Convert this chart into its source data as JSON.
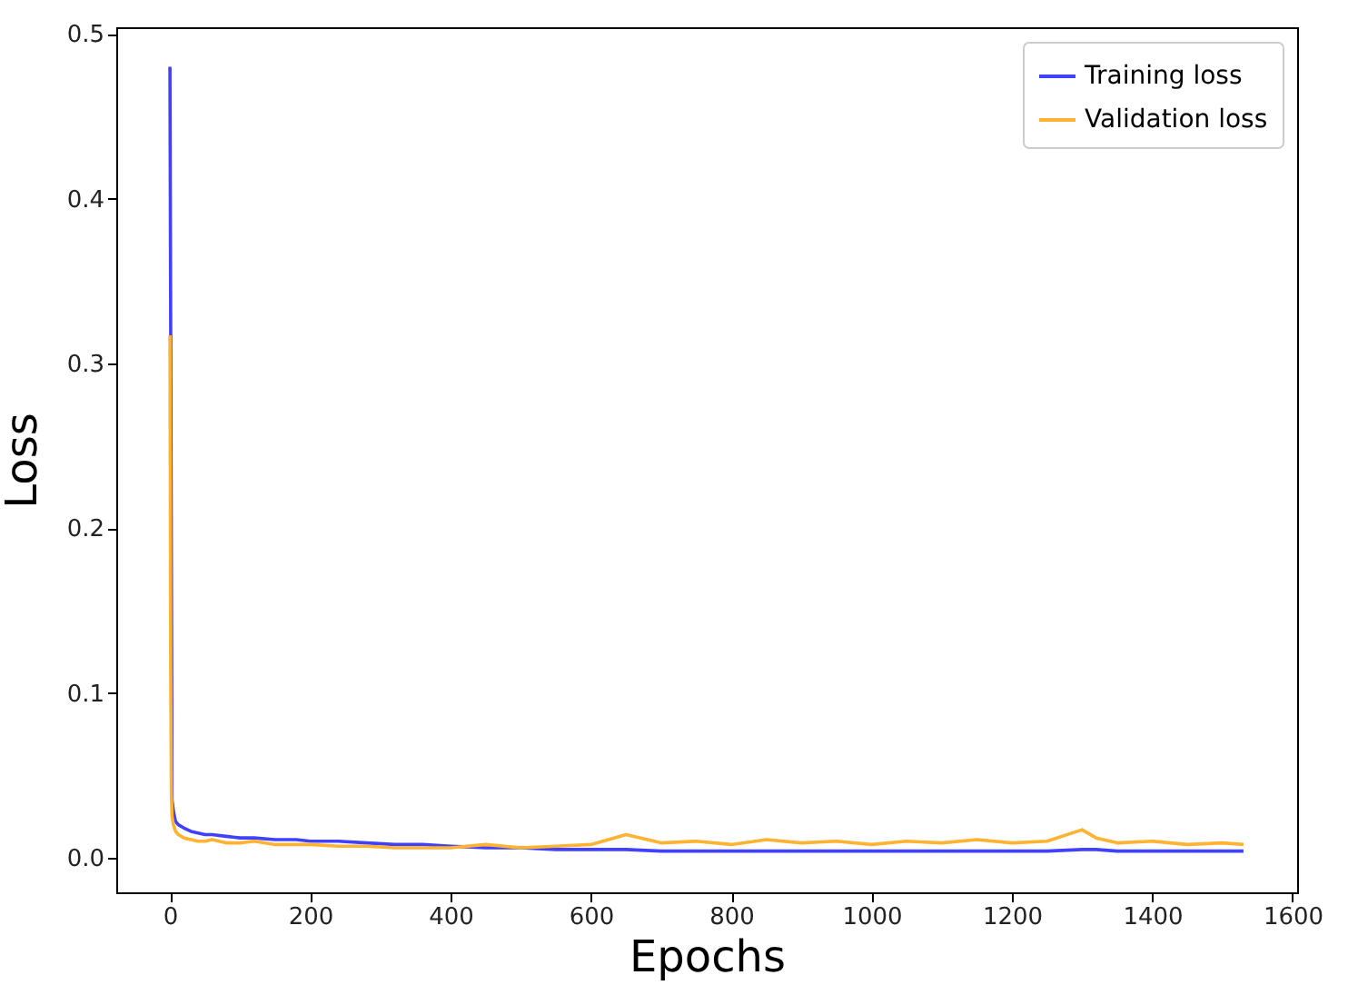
{
  "chart_data": {
    "type": "line",
    "xlabel": "Epochs",
    "ylabel": "Loss",
    "x": [
      0,
      1,
      2,
      3,
      5,
      8,
      12,
      20,
      30,
      40,
      50,
      60,
      80,
      100,
      120,
      150,
      180,
      200,
      240,
      280,
      320,
      360,
      400,
      450,
      500,
      550,
      600,
      650,
      700,
      750,
      800,
      850,
      900,
      950,
      1000,
      1050,
      1100,
      1150,
      1200,
      1250,
      1300,
      1320,
      1350,
      1400,
      1450,
      1500,
      1530
    ],
    "series": [
      {
        "name": "Training loss",
        "color": "#4040ff",
        "x": [
          0,
          3,
          5,
          8,
          12,
          20,
          30,
          40,
          50,
          60,
          80,
          100,
          120,
          150,
          180,
          200,
          240,
          280,
          320,
          360,
          400,
          450,
          500,
          550,
          600,
          650,
          700,
          750,
          800,
          850,
          900,
          950,
          1000,
          1050,
          1100,
          1150,
          1200,
          1250,
          1300,
          1320,
          1350,
          1400,
          1450,
          1500,
          1530
        ],
        "values": [
          0.48,
          0.035,
          0.028,
          0.022,
          0.02,
          0.018,
          0.016,
          0.015,
          0.014,
          0.014,
          0.013,
          0.012,
          0.012,
          0.011,
          0.011,
          0.01,
          0.01,
          0.009,
          0.008,
          0.008,
          0.007,
          0.006,
          0.006,
          0.005,
          0.005,
          0.005,
          0.004,
          0.004,
          0.004,
          0.004,
          0.004,
          0.004,
          0.004,
          0.004,
          0.004,
          0.004,
          0.004,
          0.004,
          0.005,
          0.005,
          0.004,
          0.004,
          0.004,
          0.004,
          0.004
        ]
      },
      {
        "name": "Validation loss",
        "color": "#ffb330",
        "values": [
          0.317,
          0.12,
          0.04,
          0.025,
          0.02,
          0.016,
          0.014,
          0.012,
          0.011,
          0.01,
          0.01,
          0.011,
          0.009,
          0.009,
          0.01,
          0.008,
          0.008,
          0.008,
          0.007,
          0.007,
          0.006,
          0.006,
          0.006,
          0.008,
          0.006,
          0.007,
          0.008,
          0.014,
          0.009,
          0.01,
          0.008,
          0.011,
          0.009,
          0.01,
          0.008,
          0.01,
          0.009,
          0.011,
          0.009,
          0.01,
          0.017,
          0.012,
          0.009,
          0.01,
          0.008,
          0.009,
          0.008
        ]
      }
    ],
    "xlim": [
      -76.5,
      1606.5
    ],
    "xticks": [
      0,
      200,
      400,
      600,
      800,
      1000,
      1200,
      1400,
      1600
    ],
    "ylim": [
      -0.021,
      0.504
    ],
    "yticks": [
      {
        "value": 0,
        "label": "0.0"
      },
      {
        "value": 0.1,
        "label": "0.1"
      },
      {
        "value": 0.2,
        "label": "0.2"
      },
      {
        "value": 0.3,
        "label": "0.3"
      },
      {
        "value": 0.4,
        "label": "0.4"
      },
      {
        "value": 0.5,
        "label": "0.5"
      }
    ],
    "legend": "top right",
    "grid": false,
    "marker": "none",
    "line_style": "solid"
  }
}
